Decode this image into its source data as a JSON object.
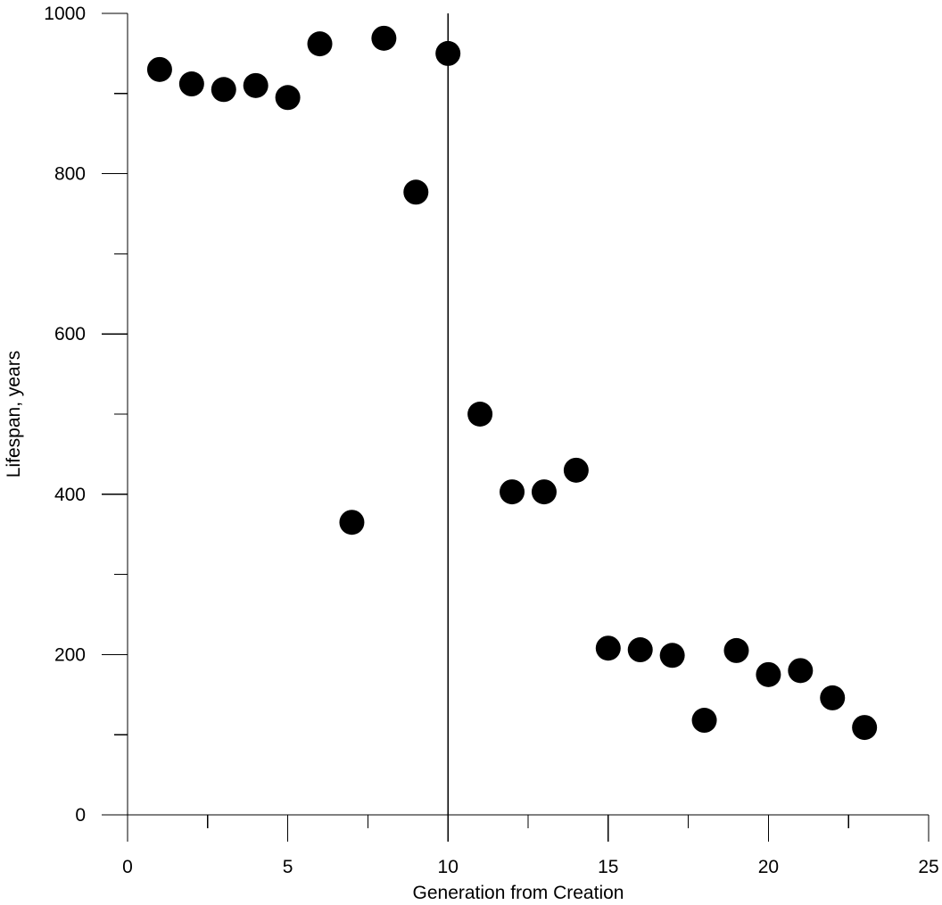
{
  "chart_data": {
    "type": "scatter",
    "title": "",
    "xlabel": "Generation from Creation",
    "ylabel": "Lifespan, years",
    "xlim": [
      0,
      25
    ],
    "ylim": [
      0,
      1000
    ],
    "x_ticks": [
      0,
      5,
      10,
      15,
      20,
      25
    ],
    "x_minor_step": 2.5,
    "y_ticks": [
      0,
      200,
      400,
      600,
      800,
      1000
    ],
    "y_minor_step": 100,
    "grid": false,
    "reference_line_x": 10,
    "marker_color": "#000000",
    "series": [
      {
        "x": [
          1,
          2,
          3,
          4,
          5,
          6,
          7,
          8,
          9,
          10,
          11,
          12,
          13,
          14,
          15,
          16,
          17,
          18,
          19,
          20,
          21,
          22,
          23
        ],
        "y": [
          930,
          912,
          905,
          910,
          895,
          962,
          365,
          969,
          777,
          950,
          500,
          403,
          403,
          430,
          208,
          206,
          199,
          118,
          205,
          175,
          180,
          146,
          109
        ]
      }
    ]
  }
}
